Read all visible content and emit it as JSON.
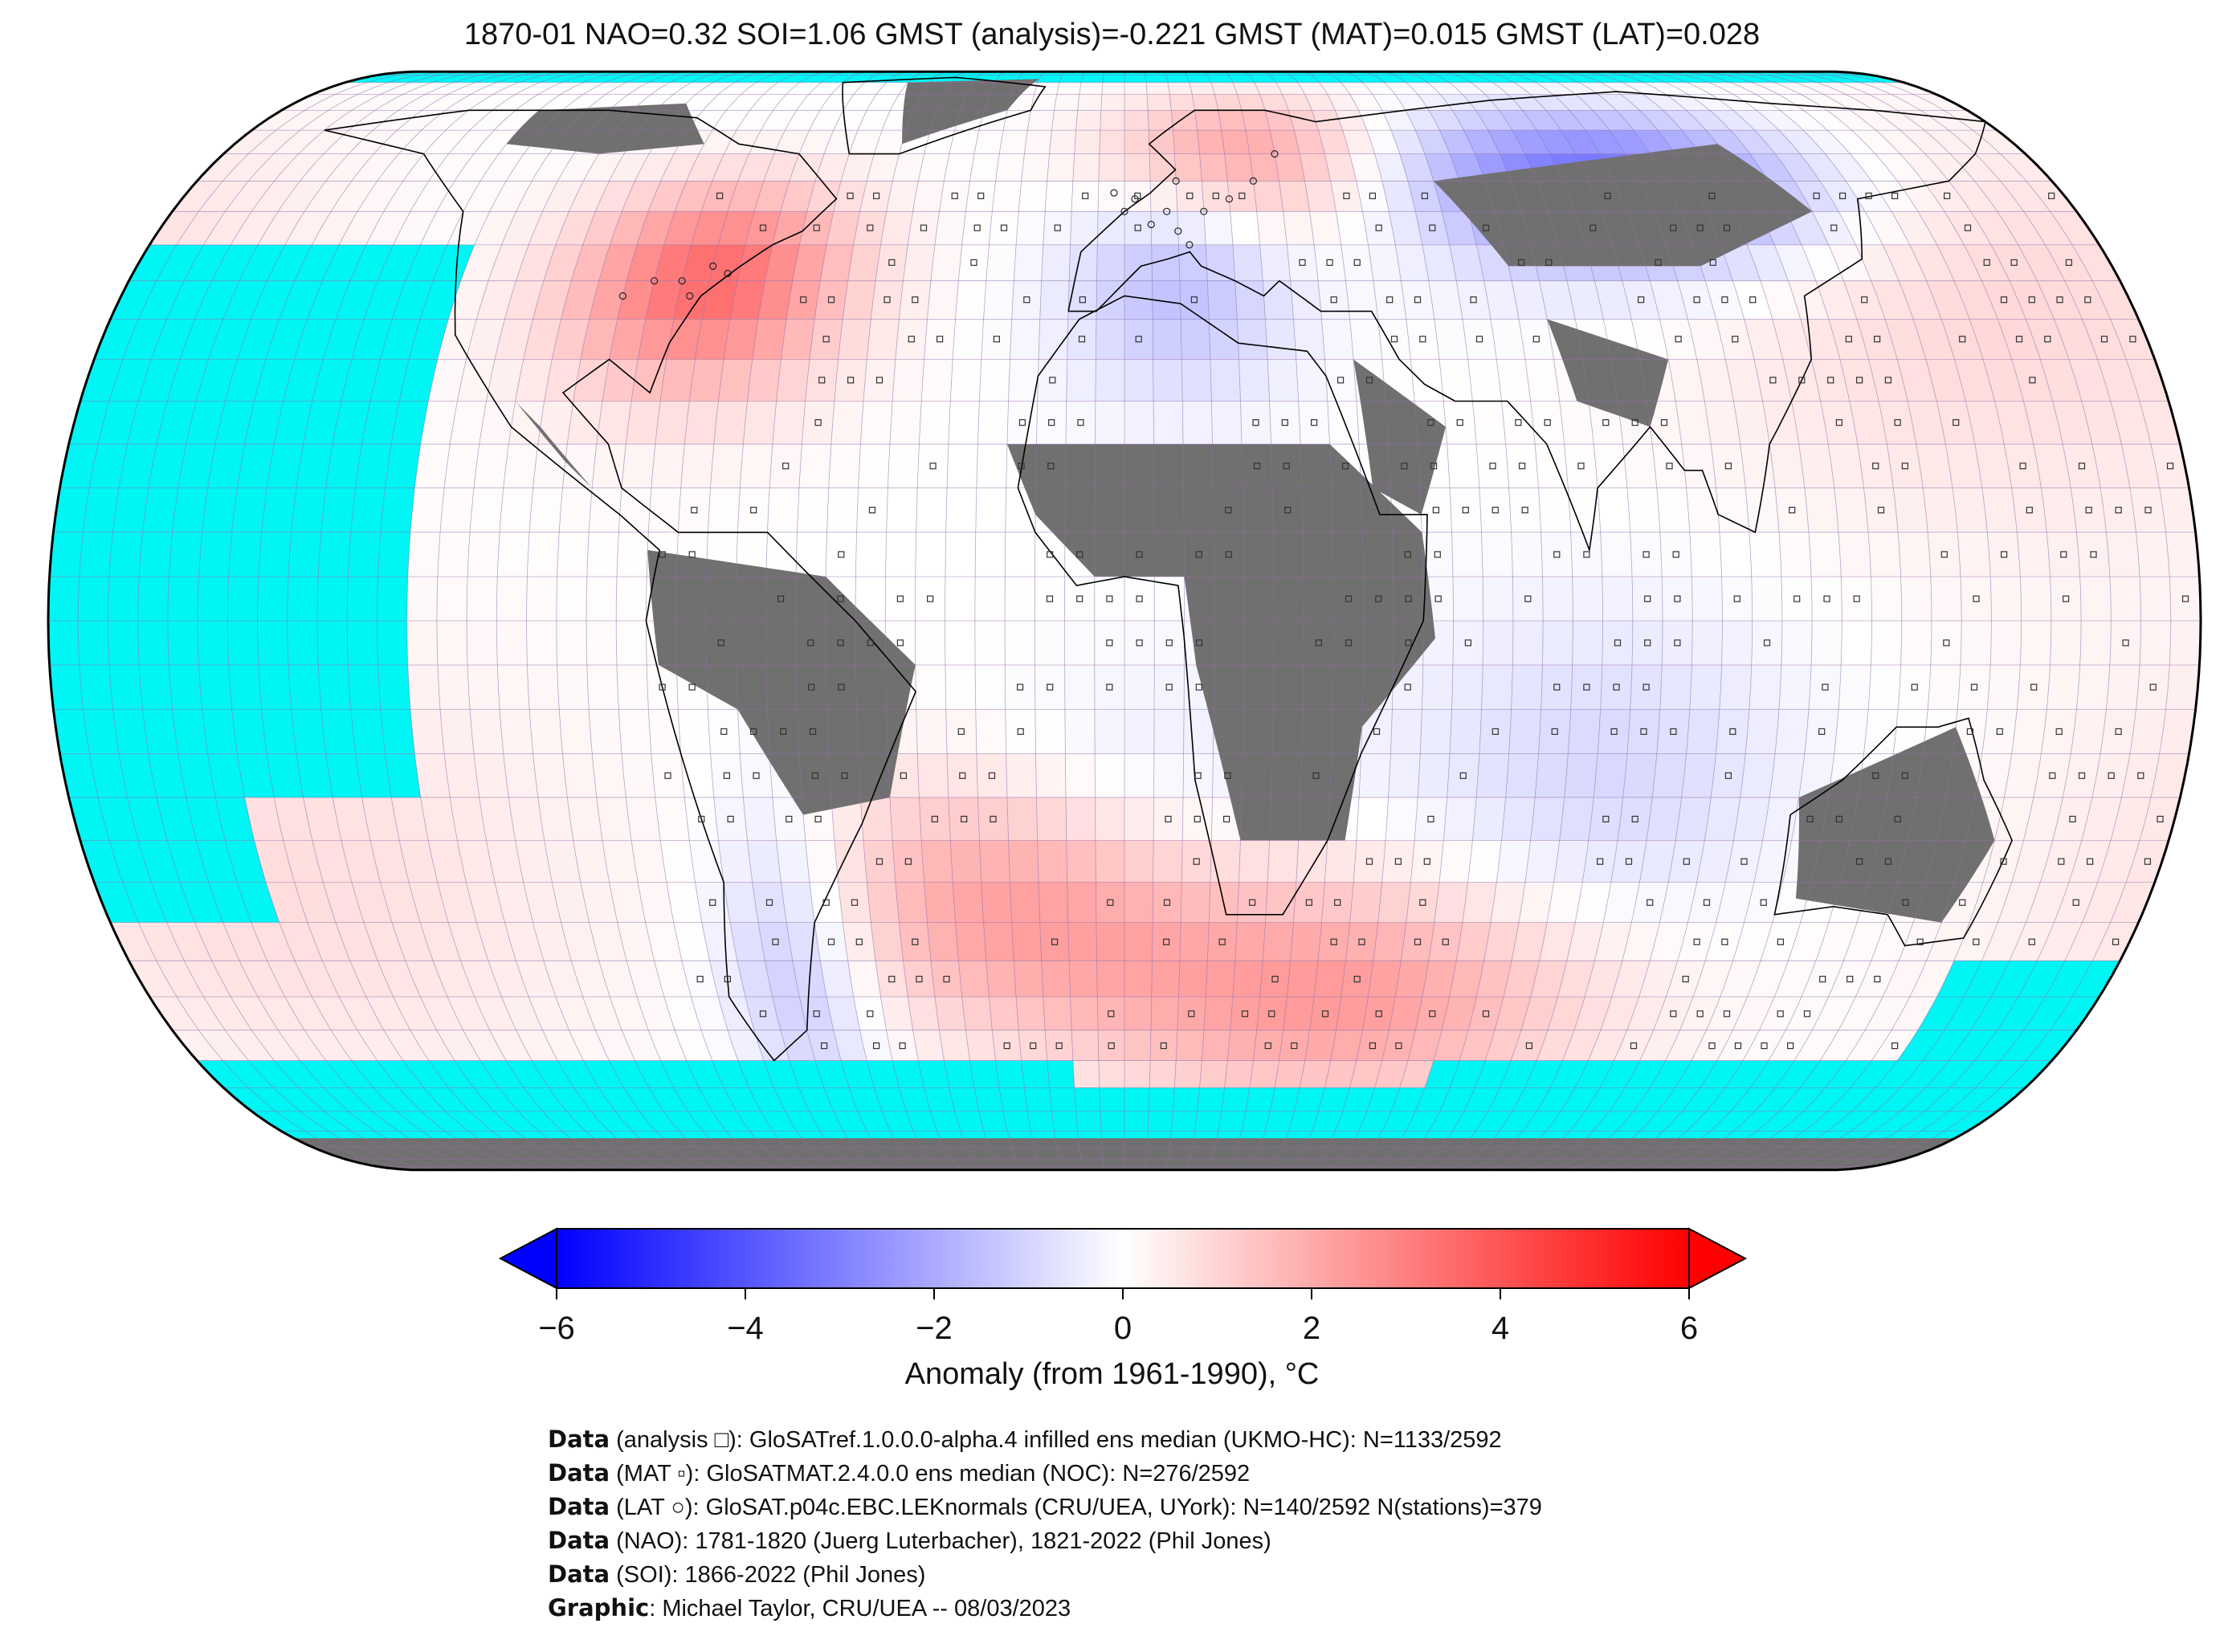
{
  "title": "1870-01 NAO=0.32 SOI=1.06 GMST (analysis)=-0.221 GMST (MAT)=0.015 GMST (LAT)=0.028",
  "colors": {
    "ocean_missing": "#00f5f5",
    "land_missing": "#707070",
    "cold": "#0000ff",
    "warm": "#ff0000",
    "neutral": "#ffffff",
    "gridline": "#9a6aa8"
  },
  "colorbar": {
    "label": "Anomaly (from 1961-1990), °C",
    "ticks": [
      "−6",
      "−4",
      "−2",
      "0",
      "2",
      "4",
      "6"
    ],
    "range": [
      -6,
      6
    ]
  },
  "credits": [
    {
      "bold": "Data",
      "text": " (analysis □): GloSATref.1.0.0.0-alpha.4 infilled ens median (UKMO-HC): N=1133/2592"
    },
    {
      "bold": "Data",
      "text": " (MAT ▫): GloSATMAT.2.4.0.0 ens median (NOC): N=276/2592"
    },
    {
      "bold": "Data",
      "text": " (LAT ○): GloSAT.p04c.EBC.LEKnormals (CRU/UEA, UYork): N=140/2592 N(stations)=379"
    },
    {
      "bold": "Data",
      "text": " (NAO): 1781-1820 (Juerg Luterbacher), 1821-2022 (Phil Jones)"
    },
    {
      "bold": "Data",
      "text": " (SOI): 1866-2022 (Phil Jones)"
    },
    {
      "bold": "Graphic",
      "text": ": Michael Taylor, CRU/UEA -- 08/03/2023"
    }
  ]
}
